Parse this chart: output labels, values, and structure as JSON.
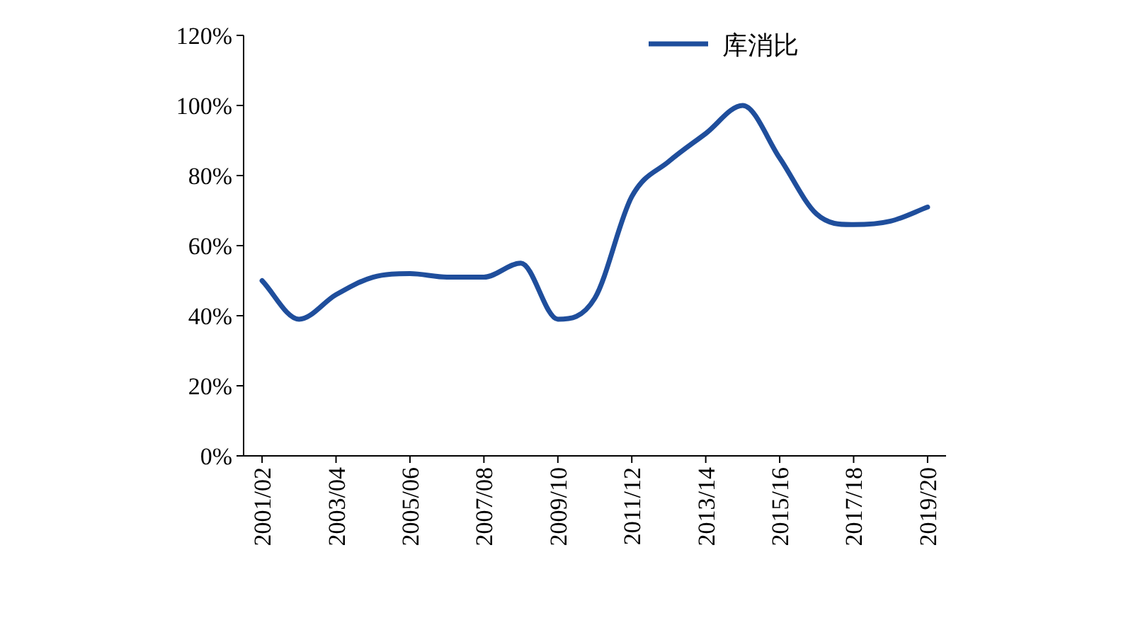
{
  "chart_data": {
    "type": "line",
    "categories": [
      "2001/02",
      null,
      "2003/04",
      null,
      "2005/06",
      null,
      "2007/08",
      null,
      "2009/10",
      null,
      "2011/12",
      null,
      "2013/14",
      null,
      "2015/16",
      null,
      "2017/18",
      null,
      "2019/20"
    ],
    "series": [
      {
        "name": "库消比",
        "color": "#1f4e9c",
        "values": [
          50,
          39,
          46,
          51,
          52,
          51,
          51,
          55,
          39,
          45,
          74,
          84,
          92,
          100,
          85,
          69,
          66,
          67,
          71
        ]
      }
    ],
    "ylim": [
      0,
      120
    ],
    "yticks": [
      {
        "value": 0,
        "label": "0%"
      },
      {
        "value": 20,
        "label": "20%"
      },
      {
        "value": 40,
        "label": "40%"
      },
      {
        "value": 60,
        "label": "60%"
      },
      {
        "value": 80,
        "label": "80%"
      },
      {
        "value": 100,
        "label": "100%"
      },
      {
        "value": 120,
        "label": "120%"
      }
    ],
    "legend": "top right",
    "grid": false,
    "marker": "none",
    "line_style": "solid"
  }
}
